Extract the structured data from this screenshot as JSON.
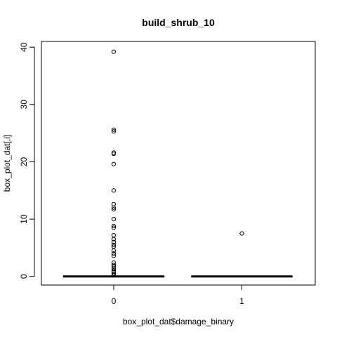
{
  "chart_data": {
    "type": "box",
    "title": "build_shrub_10",
    "xlabel": "box_plot_dat$damage_binary",
    "ylabel": "box_plot_dat[,i]",
    "categories": [
      "0",
      "1"
    ],
    "ylim": [
      -1.5,
      41
    ],
    "yticks": [
      "0",
      "10",
      "20",
      "30",
      "40"
    ],
    "grid": false,
    "boxes": [
      {
        "category": "0",
        "min": 0,
        "q1": 0,
        "median": 0,
        "q3": 0,
        "max": 0,
        "outliers": [
          39.2,
          25.6,
          25.3,
          21.6,
          21.4,
          19.6,
          15.0,
          12.6,
          12.0,
          11.7,
          10.0,
          8.8,
          8.5,
          7.2,
          6.5,
          6.0,
          5.5,
          5.2,
          4.5,
          4.0,
          3.6,
          2.4,
          2.0,
          1.7,
          1.3,
          1.0,
          0.8,
          0.5,
          0.2
        ]
      },
      {
        "category": "1",
        "min": 0,
        "q1": 0,
        "median": 0,
        "q3": 0,
        "max": 0,
        "outliers": [
          7.5
        ]
      }
    ]
  }
}
